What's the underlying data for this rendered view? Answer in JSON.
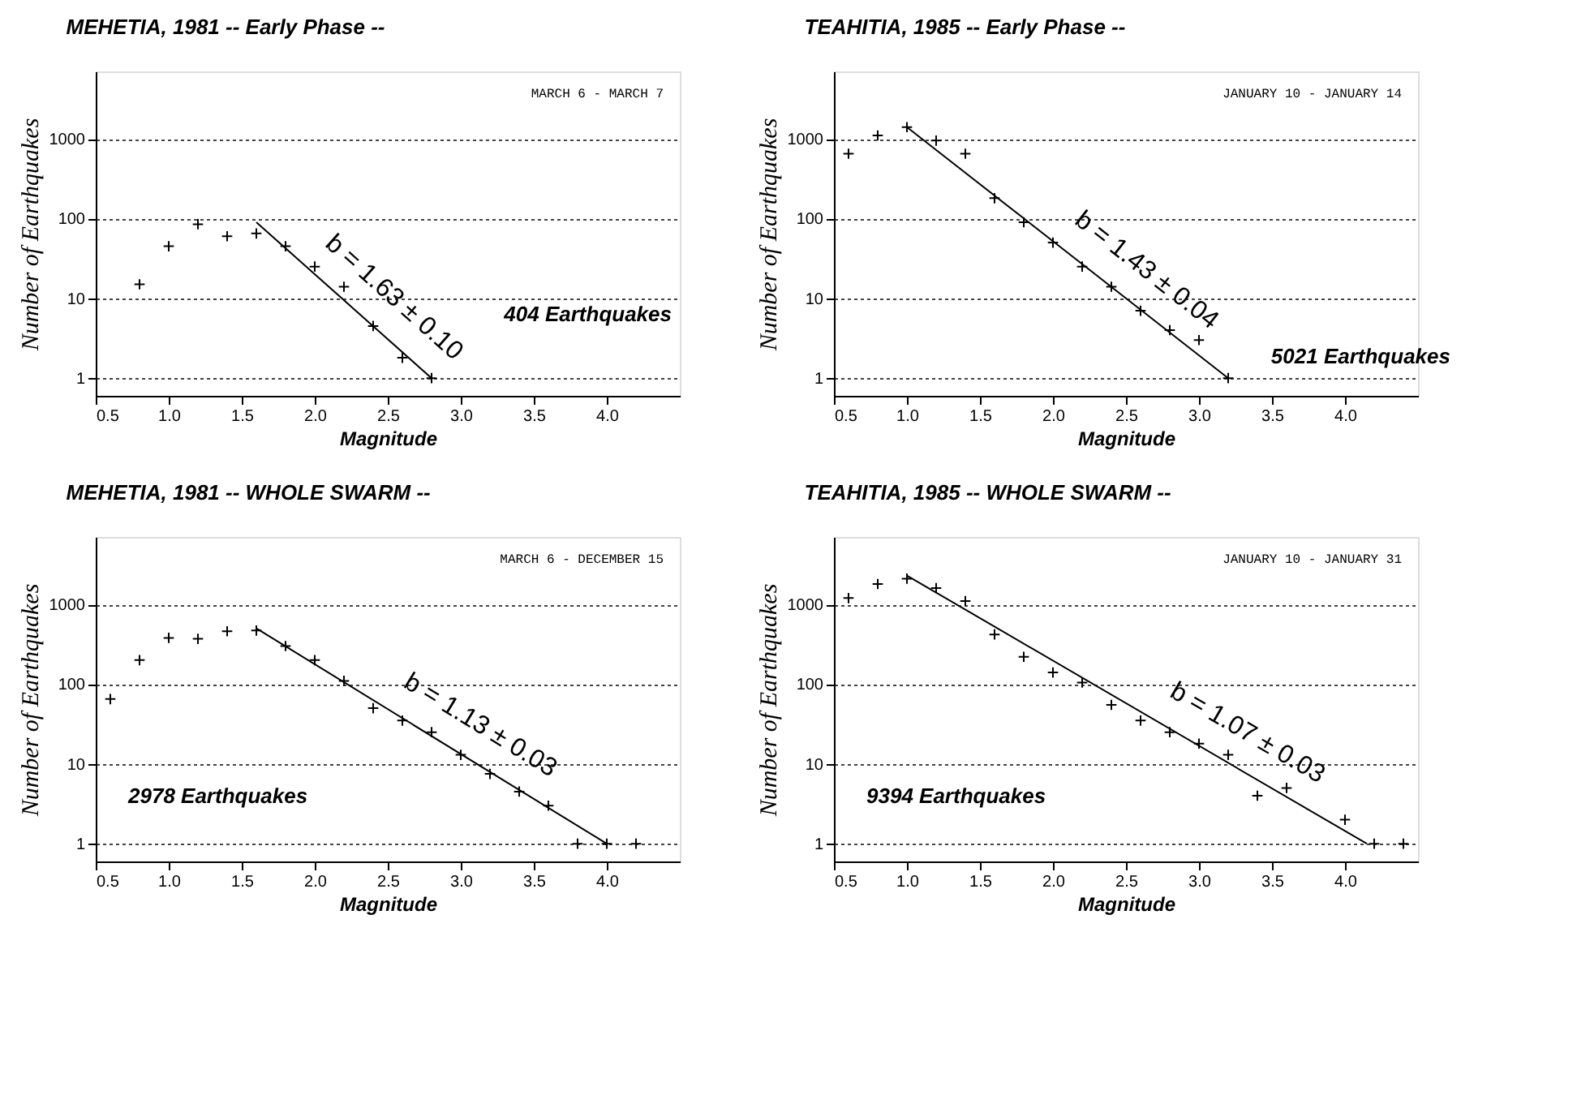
{
  "chart_data": [
    {
      "type": "scatter",
      "title": "MEHETIA, 1981 -- Early Phase --",
      "xlabel": "Magnitude",
      "ylabel": "Number of Earthquakes",
      "log": "y",
      "grid": "y",
      "xlim": [
        0.5,
        4.5
      ],
      "xticks": [
        0.5,
        {
          "value": 1.0,
          "label": "1.0"
        },
        1.5,
        {
          "value": 2.0,
          "label": "2.0"
        },
        2.5,
        {
          "value": 3.0,
          "label": "3.0"
        },
        3.5,
        {
          "value": 4.0,
          "label": "4.0"
        }
      ],
      "ylim": [
        0.6,
        7000
      ],
      "yticks": [
        1,
        10,
        100,
        1000
      ],
      "annotations": [
        "MARCH 6 - MARCH 7",
        {
          "text": "b = 1.63 ± 0.10",
          "x": 2.2,
          "y": 9.5
        },
        "404 Earthquakes"
      ],
      "series": [
        {
          "color": "#000000",
          "marker": "cross",
          "x": [
            0.8,
            1.0,
            1.2,
            1.4,
            1.6,
            1.8,
            2.0,
            2.2,
            2.4,
            2.6,
            2.8
          ],
          "values": [
            15,
            45,
            85,
            60,
            65,
            45,
            25,
            14,
            4.5,
            1.8,
            1
          ]
        },
        {
          "type": "line",
          "marker": "none",
          "color": "#000000",
          "x": [
            1.6,
            2.8
          ],
          "values": [
            90,
            1
          ]
        }
      ]
    },
    {
      "type": "scatter",
      "title": "TEAHITIA, 1985 -- Early Phase --",
      "xlabel": "Magnitude",
      "ylabel": "Number of Earthquakes",
      "log": "y",
      "grid": "y",
      "xlim": [
        0.5,
        4.5
      ],
      "xticks": [
        0.5,
        {
          "value": 1.0,
          "label": "1.0"
        },
        1.5,
        {
          "value": 2.0,
          "label": "2.0"
        },
        2.5,
        {
          "value": 3.0,
          "label": "3.0"
        },
        3.5,
        {
          "value": 4.0,
          "label": "4.0"
        }
      ],
      "ylim": [
        0.6,
        7000
      ],
      "yticks": [
        1,
        10,
        100,
        1000
      ],
      "annotations": [
        "JANUARY 10 - JANUARY 14",
        {
          "text": "b = 1.43 ± 0.04",
          "x": 2.3,
          "y": 19
        },
        "5021 Earthquakes"
      ],
      "series": [
        {
          "color": "#000000",
          "marker": "cross",
          "x": [
            0.6,
            0.8,
            1.0,
            1.2,
            1.4,
            1.6,
            1.8,
            2.0,
            2.2,
            2.4,
            2.6,
            2.8,
            3.0,
            3.2
          ],
          "values": [
            650,
            1100,
            1400,
            950,
            650,
            180,
            90,
            50,
            25,
            14,
            7,
            4,
            3,
            1
          ]
        },
        {
          "type": "line",
          "marker": "none",
          "color": "#000000",
          "x": [
            1.0,
            3.2
          ],
          "values": [
            1400,
            1
          ]
        }
      ]
    },
    {
      "type": "scatter",
      "title": "MEHETIA, 1981  -- WHOLE SWARM --",
      "xlabel": "Magnitude",
      "ylabel": "Number of Earthquakes",
      "log": "y",
      "grid": "y",
      "xlim": [
        0.5,
        4.5
      ],
      "xticks": [
        0.5,
        {
          "value": 1.0,
          "label": "1.0"
        },
        1.5,
        {
          "value": 2.0,
          "label": "2.0"
        },
        2.5,
        {
          "value": 3.0,
          "label": "3.0"
        },
        3.5,
        {
          "value": 4.0,
          "label": "4.0"
        }
      ],
      "ylim": [
        0.6,
        7000
      ],
      "yticks": [
        1,
        10,
        100,
        1000
      ],
      "annotations": [
        "MARCH 6 - DECEMBER 15",
        {
          "text": "b = 1.13 ± 0.03",
          "x": 2.8,
          "y": 22
        },
        "2978 Earthquakes"
      ],
      "series": [
        {
          "color": "#000000",
          "marker": "cross",
          "x": [
            0.6,
            0.8,
            1.0,
            1.2,
            1.4,
            1.6,
            1.8,
            2.0,
            2.2,
            2.4,
            2.6,
            2.8,
            3.0,
            3.2,
            3.4,
            3.6,
            3.8,
            4.0,
            4.2
          ],
          "values": [
            65,
            200,
            380,
            370,
            460,
            470,
            300,
            200,
            110,
            50,
            35,
            25,
            13,
            7.5,
            4.5,
            3,
            1,
            1,
            1
          ]
        },
        {
          "type": "line",
          "marker": "none",
          "color": "#000000",
          "x": [
            1.6,
            4.0
          ],
          "values": [
            500,
            1
          ]
        }
      ]
    },
    {
      "type": "scatter",
      "title": "TEAHITIA, 1985 -- WHOLE SWARM --",
      "xlabel": "Magnitude",
      "ylabel": "Number of Earthquakes",
      "log": "y",
      "grid": "y",
      "xlim": [
        0.5,
        4.5
      ],
      "xticks": [
        0.5,
        {
          "value": 1.0,
          "label": "1.0"
        },
        1.5,
        {
          "value": 2.0,
          "label": "2.0"
        },
        2.5,
        {
          "value": 3.0,
          "label": "3.0"
        },
        3.5,
        {
          "value": 4.0,
          "label": "4.0"
        }
      ],
      "ylim": [
        0.6,
        7000
      ],
      "yticks": [
        1,
        10,
        100,
        1000
      ],
      "annotations": [
        "JANUARY 10 - JANUARY 31",
        {
          "text": "b = 1.07 ± 0.03",
          "x": 3.0,
          "y": 17
        },
        "9394 Earthquakes"
      ],
      "series": [
        {
          "color": "#000000",
          "marker": "cross",
          "x": [
            0.6,
            0.8,
            1.0,
            1.2,
            1.4,
            1.6,
            1.8,
            2.0,
            2.2,
            2.4,
            2.6,
            2.8,
            3.0,
            3.2,
            3.4,
            3.6,
            4.0,
            4.2,
            4.4
          ],
          "values": [
            1200,
            1800,
            2100,
            1600,
            1100,
            420,
            220,
            140,
            105,
            55,
            35,
            25,
            18,
            13,
            4,
            5,
            2,
            1,
            1
          ]
        },
        {
          "type": "line",
          "marker": "none",
          "color": "#000000",
          "x": [
            1.0,
            4.15
          ],
          "values": [
            2300,
            1
          ]
        }
      ]
    }
  ]
}
